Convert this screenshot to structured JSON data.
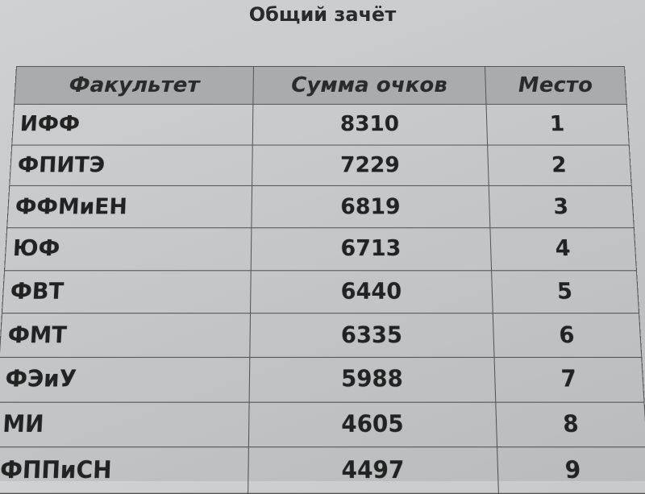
{
  "title": "Общий зачёт",
  "table": {
    "headers": [
      "Факультет",
      "Сумма очков",
      "Место"
    ],
    "rows": [
      {
        "faculty": "ИФФ",
        "score": "8310",
        "place": "1"
      },
      {
        "faculty": "ФПИТЭ",
        "score": "7229",
        "place": "2"
      },
      {
        "faculty": "ФФМиЕН",
        "score": "6819",
        "place": "3"
      },
      {
        "faculty": "ЮФ",
        "score": "6713",
        "place": "4"
      },
      {
        "faculty": "ФВТ",
        "score": "6440",
        "place": "5"
      },
      {
        "faculty": "ФМТ",
        "score": "6335",
        "place": "6"
      },
      {
        "faculty": "ФЭиУ",
        "score": "5988",
        "place": "7"
      },
      {
        "faculty": "МИ",
        "score": "4605",
        "place": "8"
      },
      {
        "faculty": "ФППиСН",
        "score": "4497",
        "place": "9"
      }
    ]
  }
}
